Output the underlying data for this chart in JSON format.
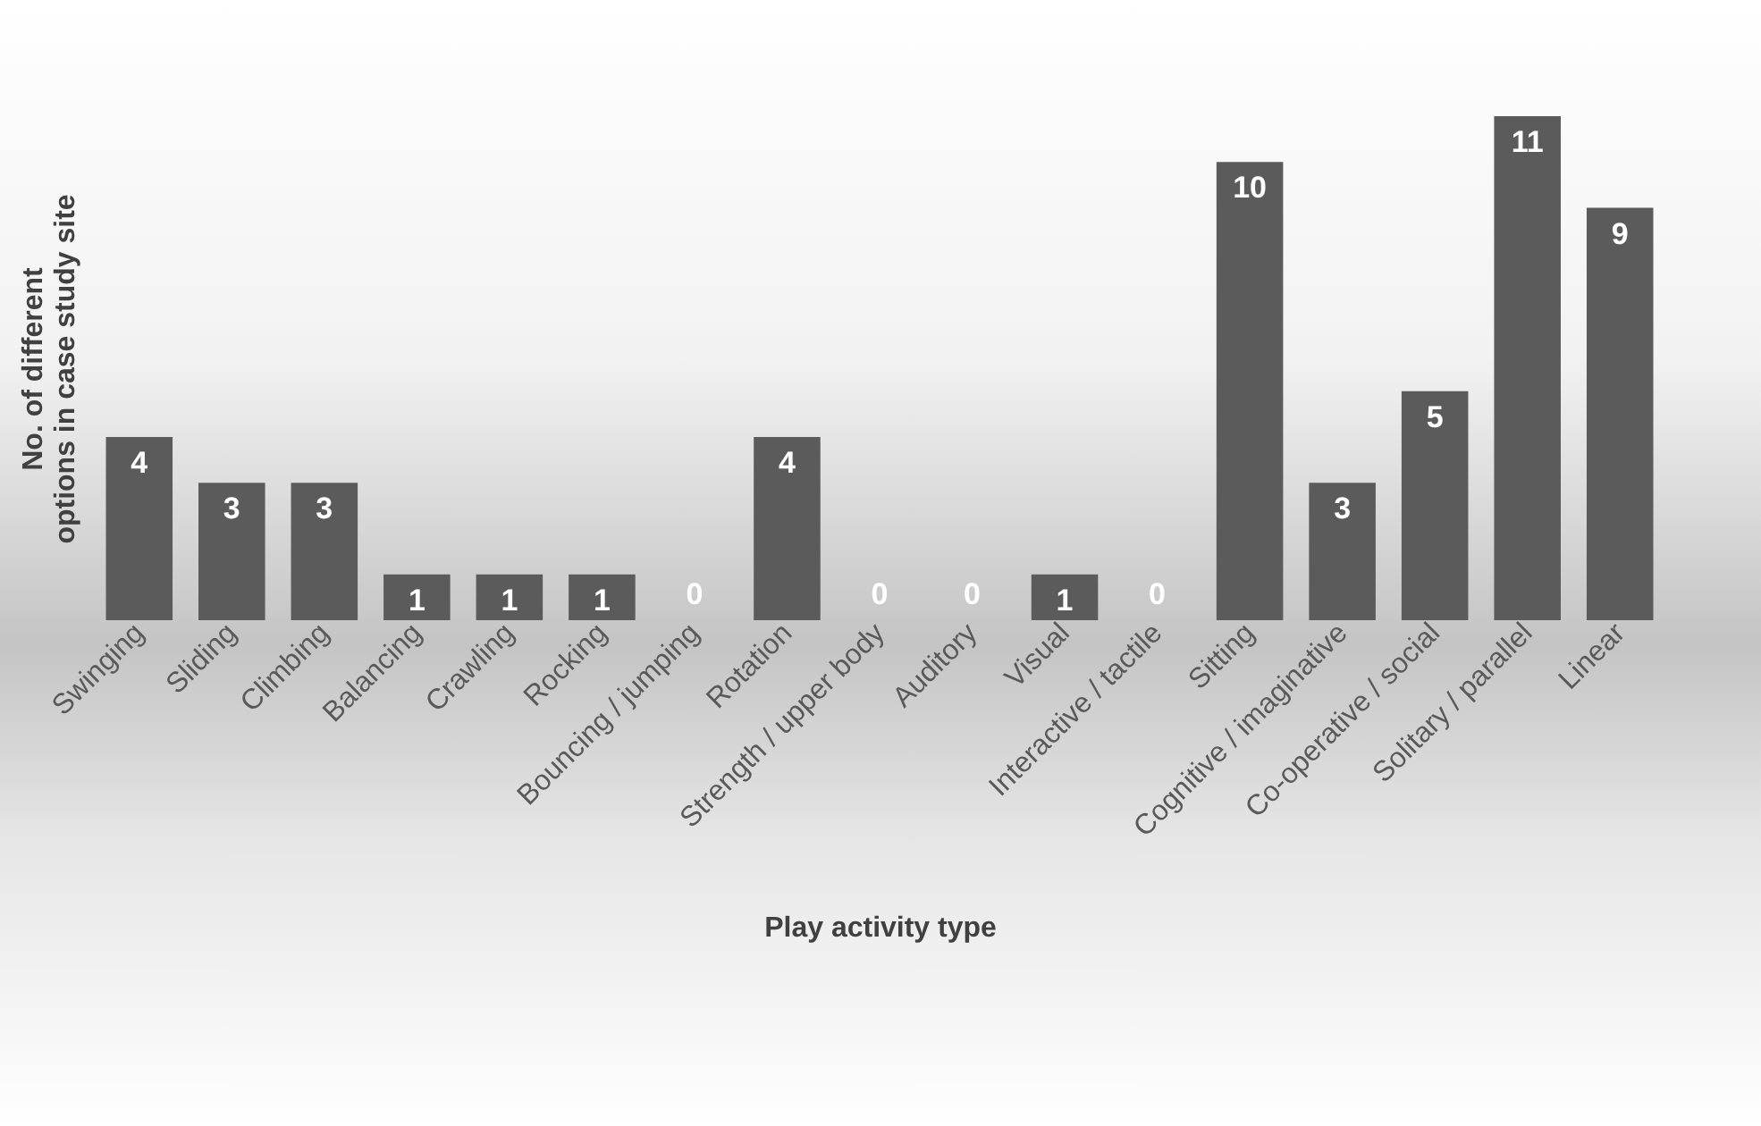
{
  "chart_data": {
    "type": "bar",
    "xlabel": "Play activity type",
    "ylabel": "No. of different options in case study site",
    "categories": [
      "Swinging",
      "Sliding",
      "Climbing",
      "Balancing",
      "Crawling",
      "Rocking",
      "Bouncing / jumping",
      "Rotation",
      "Strength / upper body",
      "Auditory",
      "Visual",
      "Interactive / tactile",
      "Sitting",
      "Cognitive / imaginative",
      "Co-operative / social",
      "Solitary / parallel",
      "Linear"
    ],
    "values": [
      4,
      3,
      3,
      1,
      1,
      1,
      0,
      4,
      0,
      0,
      1,
      0,
      10,
      3,
      5,
      11,
      9
    ],
    "color": "#5b5b5b",
    "data_labels": true
  }
}
